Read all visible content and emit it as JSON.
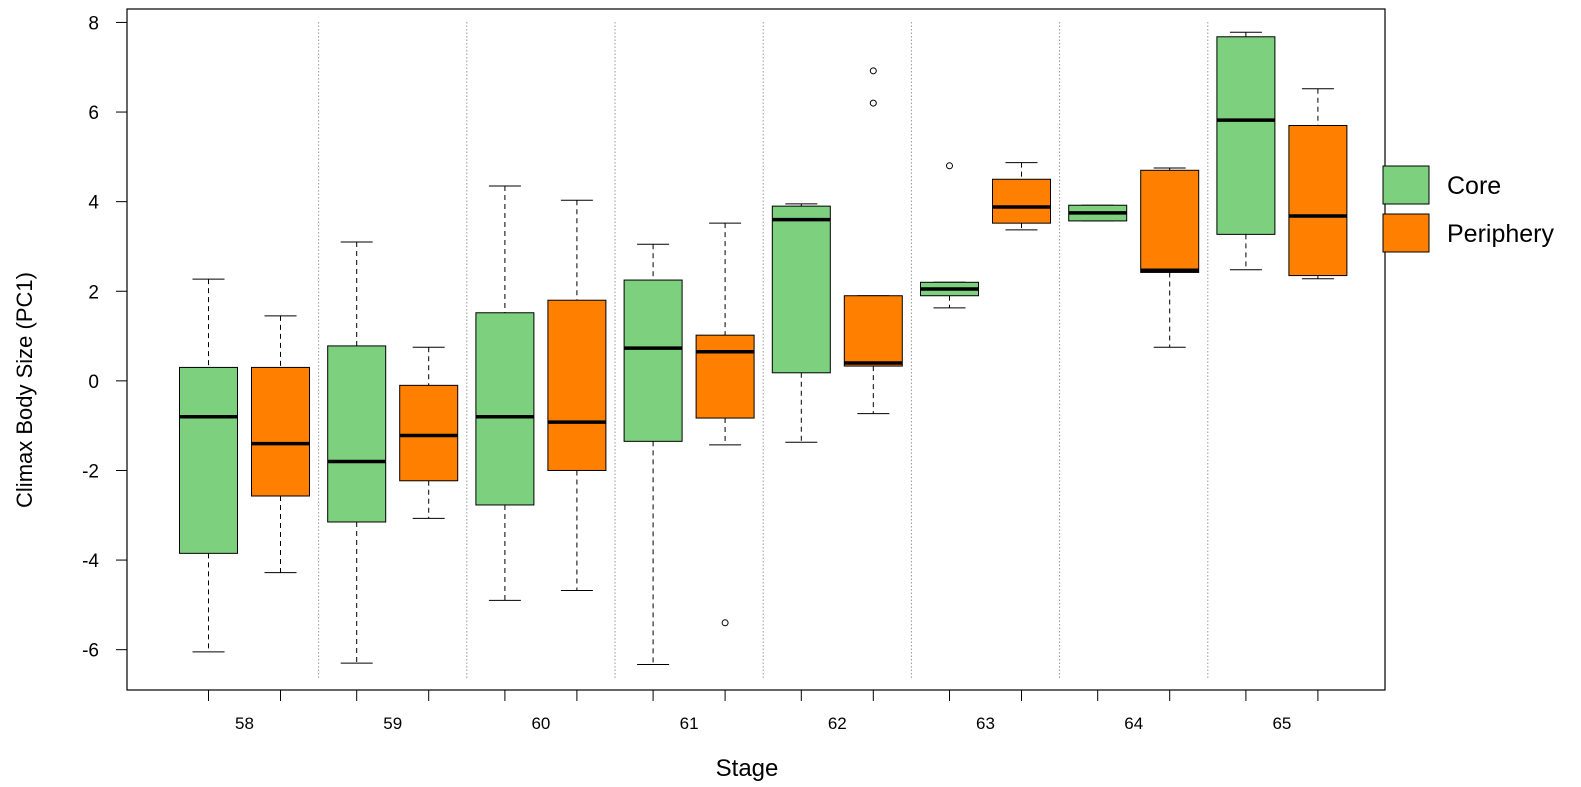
{
  "chart_data": {
    "type": "boxplot",
    "title": "",
    "xlabel": "Stage",
    "ylabel": "Climax Body Size (PC1)",
    "ylim": [
      -6.9,
      8.3
    ],
    "yticks": [
      -6,
      -4,
      -2,
      0,
      2,
      4,
      6,
      8
    ],
    "grid": false,
    "legend_position": "right",
    "categories": [
      "58",
      "59",
      "60",
      "61",
      "62",
      "63",
      "64",
      "65"
    ],
    "series": [
      {
        "name": "Core",
        "color": "#7dd07d",
        "boxes": [
          {
            "whisker_low": -6.05,
            "q1": -3.85,
            "median": -0.8,
            "q3": 0.3,
            "whisker_high": 2.27,
            "outliers": []
          },
          {
            "whisker_low": -6.3,
            "q1": -3.15,
            "median": -1.8,
            "q3": 0.78,
            "whisker_high": 3.1,
            "outliers": []
          },
          {
            "whisker_low": -4.9,
            "q1": -2.77,
            "median": -0.8,
            "q3": 1.52,
            "whisker_high": 4.35,
            "outliers": []
          },
          {
            "whisker_low": -6.33,
            "q1": -1.35,
            "median": 0.73,
            "q3": 2.25,
            "whisker_high": 3.05,
            "outliers": []
          },
          {
            "whisker_low": -1.37,
            "q1": 0.18,
            "median": 3.6,
            "q3": 3.9,
            "whisker_high": 3.95,
            "outliers": []
          },
          {
            "whisker_low": 1.63,
            "q1": 1.9,
            "median": 2.05,
            "q3": 2.2,
            "whisker_high": 2.2,
            "outliers": [
              4.8
            ]
          },
          {
            "whisker_low": 3.57,
            "q1": 3.57,
            "median": 3.75,
            "q3": 3.92,
            "whisker_high": 3.92,
            "outliers": []
          },
          {
            "whisker_low": 2.48,
            "q1": 3.27,
            "median": 5.82,
            "q3": 7.68,
            "whisker_high": 7.78,
            "outliers": []
          }
        ]
      },
      {
        "name": "Periphery",
        "color": "#ff8000",
        "boxes": [
          {
            "whisker_low": -4.28,
            "q1": -2.57,
            "median": -1.4,
            "q3": 0.3,
            "whisker_high": 1.45,
            "outliers": []
          },
          {
            "whisker_low": -3.07,
            "q1": -2.23,
            "median": -1.22,
            "q3": -0.1,
            "whisker_high": 0.75,
            "outliers": []
          },
          {
            "whisker_low": -4.68,
            "q1": -2.0,
            "median": -0.92,
            "q3": 1.8,
            "whisker_high": 4.03,
            "outliers": []
          },
          {
            "whisker_low": -1.43,
            "q1": -0.83,
            "median": 0.65,
            "q3": 1.02,
            "whisker_high": 3.52,
            "outliers": [
              -5.4
            ]
          },
          {
            "whisker_low": -0.73,
            "q1": 0.33,
            "median": 0.4,
            "q3": 1.9,
            "whisker_high": 1.9,
            "outliers": [
              6.2,
              6.92
            ]
          },
          {
            "whisker_low": 3.37,
            "q1": 3.52,
            "median": 3.88,
            "q3": 4.5,
            "whisker_high": 4.87,
            "outliers": []
          },
          {
            "whisker_low": 0.75,
            "q1": 2.42,
            "median": 2.47,
            "q3": 4.7,
            "whisker_high": 4.75,
            "outliers": []
          },
          {
            "whisker_low": 2.28,
            "q1": 2.35,
            "median": 3.68,
            "q3": 5.7,
            "whisker_high": 6.52,
            "outliers": []
          }
        ]
      }
    ]
  }
}
